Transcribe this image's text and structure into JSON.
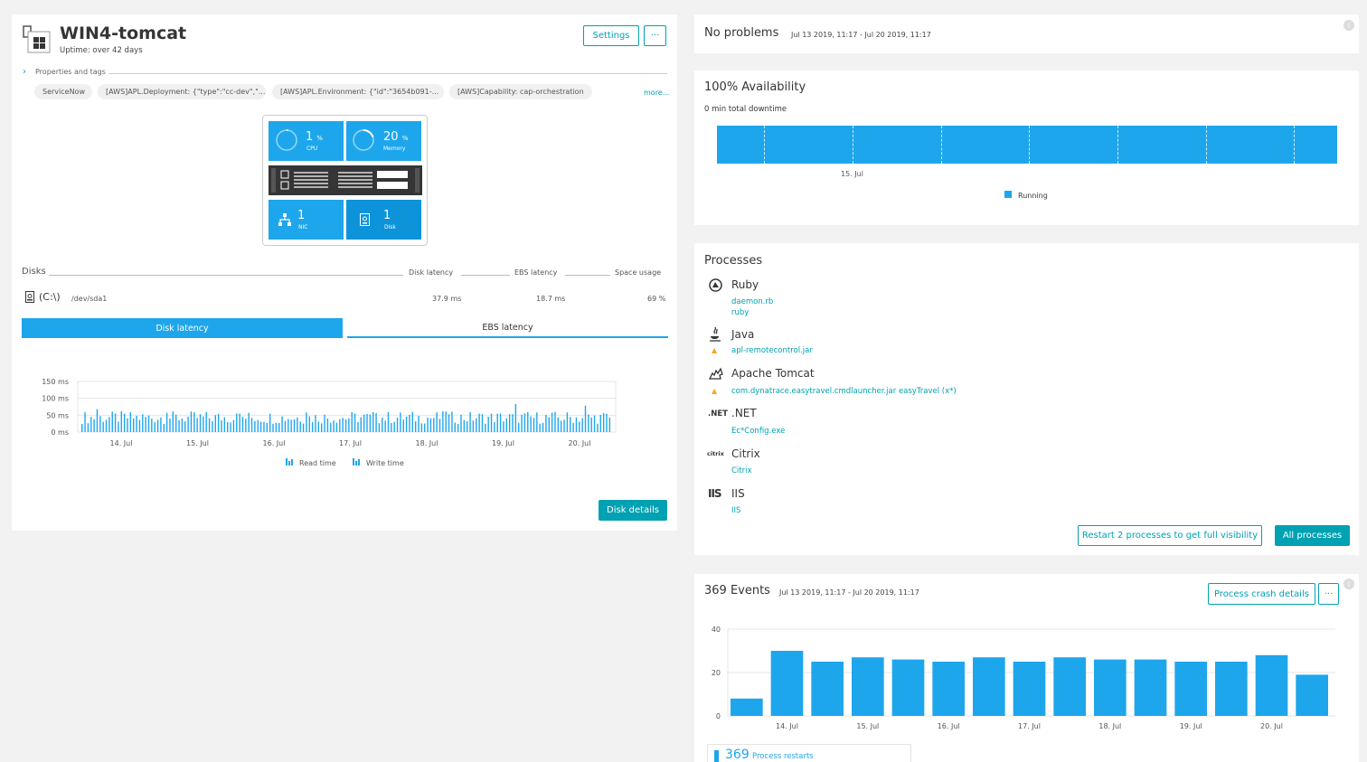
{
  "host": {
    "name": "WIN4-tomcat",
    "uptime": "Uptime: over 42 days",
    "settings_label": "Settings",
    "more_label": "···",
    "properties_label": "Properties and tags",
    "tags": [
      {
        "label": "ServiceNow"
      },
      {
        "label": "[AWS]APL.Deployment: {\"type\":\"cc-dev\",\"..."
      },
      {
        "label": "[AWS]APL.Environment: {\"id\":\"3654b091-..."
      },
      {
        "label": "[AWS]Capability: cap-orchestration"
      }
    ],
    "tags_more": "more..."
  },
  "infographic": {
    "cpu": {
      "value": "1",
      "unit": "%",
      "label": "CPU",
      "fill": 0.01
    },
    "memory": {
      "value": "20",
      "unit": "%",
      "label": "Memory",
      "fill": 0.2
    },
    "nic": {
      "value": "1",
      "label": "NIC"
    },
    "disk": {
      "value": "1",
      "label": "Disk"
    }
  },
  "disks": {
    "title": "Disks",
    "col_latency": "Disk latency",
    "col_ebs": "EBS latency",
    "col_space": "Space usage",
    "row": {
      "name": "(C:\\)",
      "path": "/dev/sda1",
      "latency": "37.9 ms",
      "ebs": "18.7 ms",
      "space": "69 %"
    },
    "tab_active": "Disk latency",
    "tab_inactive": "EBS latency",
    "details_button": "Disk details"
  },
  "disk_chart": {
    "y_ticks": [
      "150 ms",
      "100 ms",
      "50 ms",
      "0 ms"
    ],
    "x_ticks": [
      "14. Jul",
      "15. Jul",
      "16. Jul",
      "17. Jul",
      "18. Jul",
      "19. Jul",
      "20. Jul"
    ],
    "legend": [
      "Read time",
      "Write time"
    ],
    "color": "#1ea6ec"
  },
  "problems": {
    "title": "No problems",
    "range": "Jul 13 2019, 11:17 - Jul 20 2019, 11:17"
  },
  "availability": {
    "title": "100% Availability",
    "downtime": "0 min total downtime",
    "tick": "15. Jul",
    "legend": "Running",
    "color": "#1ea6ec"
  },
  "processes": {
    "title": "Processes",
    "items": [
      {
        "name": "Ruby",
        "icon": "ruby-icon",
        "subs": [
          "daemon.rb",
          "ruby"
        ],
        "warning": false
      },
      {
        "name": "Java",
        "icon": "java-icon",
        "subs": [
          "apl-remotecontrol.jar"
        ],
        "warning": true
      },
      {
        "name": "Apache Tomcat",
        "icon": "tomcat-icon",
        "subs": [
          "com.dynatrace.easytravel.cmdlauncher.jar easyTravel (x*)"
        ],
        "warning": true
      },
      {
        "name": ".NET",
        "icon": "dotnet-icon",
        "subs": [
          "Ec*Config.exe"
        ],
        "warning": false
      },
      {
        "name": "Citrix",
        "icon": "citrix-icon",
        "subs": [
          "Citrix"
        ],
        "warning": false
      },
      {
        "name": "IIS",
        "icon": "iis-icon",
        "subs": [
          "IIS"
        ],
        "warning": false
      }
    ],
    "restart_button": "Restart 2 processes to get full visibility",
    "all_button": "All processes",
    "icon_text_dotnet": ".NET",
    "icon_text_citrix": "citrix",
    "icon_text_iis": "IIS"
  },
  "events": {
    "title": "369 Events",
    "range": "Jul 13 2019, 11:17 - Jul 20 2019, 11:17",
    "crash_button": "Process crash details",
    "more_label": "···",
    "summary_count": "369",
    "summary_label": "Process restarts"
  },
  "chart_data": {
    "type": "bar",
    "title": "",
    "categories": [
      "",
      "14. Jul",
      "",
      "15. Jul",
      "",
      "16. Jul",
      "",
      "17. Jul",
      "",
      "18. Jul",
      "",
      "19. Jul",
      "",
      "20. Jul",
      ""
    ],
    "values": [
      8,
      30,
      25,
      27,
      26,
      25,
      27,
      25,
      27,
      26,
      26,
      25,
      25,
      28,
      19
    ],
    "ylim": [
      0,
      40
    ],
    "y_ticks": [
      "40",
      "20",
      "0"
    ],
    "x_ticks": [
      "14. Jul",
      "15. Jul",
      "16. Jul",
      "17. Jul",
      "18. Jul",
      "19. Jul",
      "20. Jul"
    ],
    "color": "#1ea6ec"
  }
}
